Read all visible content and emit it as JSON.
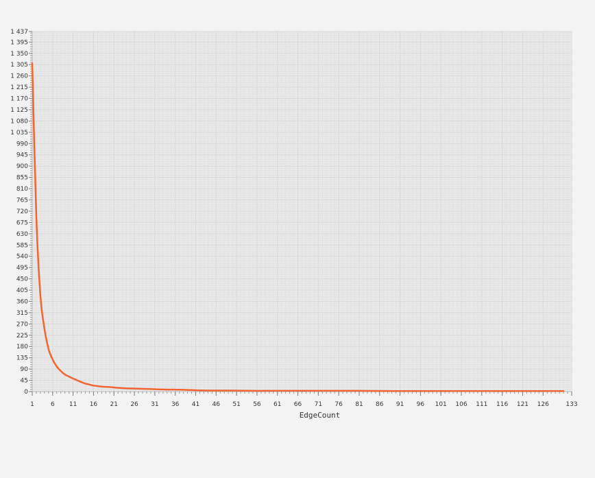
{
  "colors": {
    "page_background": "#f3f3f3",
    "plot_background": "#e9e9e9",
    "grid_major": "#dadada",
    "grid_minor": "#e2e2e2",
    "axis_text": "#333333",
    "series_line": "#f26430"
  },
  "chart_data": {
    "type": "line",
    "title": "",
    "xlabel": "EdgeCount",
    "ylabel": "",
    "grid": true,
    "legend": "none",
    "xlim": [
      1,
      133
    ],
    "ylim": [
      0,
      1437
    ],
    "x_ticks": [
      1,
      6,
      11,
      16,
      21,
      26,
      31,
      36,
      41,
      46,
      51,
      56,
      61,
      66,
      71,
      76,
      81,
      86,
      91,
      96,
      101,
      106,
      111,
      116,
      121,
      126,
      133
    ],
    "x_tick_labels": [
      "1",
      "6",
      "11",
      "16",
      "21",
      "26",
      "31",
      "36",
      "41",
      "46",
      "51",
      "56",
      "61",
      "66",
      "71",
      "76",
      "81",
      "86",
      "91",
      "96",
      "101",
      "106",
      "111",
      "116",
      "121",
      "126",
      "133"
    ],
    "y_ticks": [
      0,
      45,
      90,
      135,
      180,
      225,
      270,
      315,
      360,
      405,
      450,
      495,
      540,
      585,
      630,
      675,
      720,
      765,
      810,
      855,
      900,
      945,
      990,
      1035,
      1080,
      1125,
      1170,
      1215,
      1260,
      1305,
      1350,
      1395,
      1437
    ],
    "y_tick_labels": [
      "0",
      "45",
      "90",
      "135",
      "180",
      "225",
      "270",
      "315",
      "360",
      "405",
      "450",
      "495",
      "540",
      "585",
      "630",
      "675",
      "720",
      "765",
      "810",
      "855",
      "900",
      "945",
      "990",
      "1 035",
      "1 080",
      "1 125",
      "1 170",
      "1 215",
      "1 260",
      "1 305",
      "1 350",
      "1 395",
      "1 437"
    ],
    "series": [
      {
        "x": [
          1,
          2,
          3,
          4,
          5,
          6,
          7,
          8,
          9,
          10,
          11,
          12,
          13,
          14,
          15,
          16,
          18,
          20,
          22,
          24,
          26,
          28,
          30,
          32,
          34,
          36,
          38,
          40,
          42,
          45,
          50,
          55,
          60,
          70,
          80,
          90,
          100,
          110,
          120,
          126,
          131
        ],
        "y": [
          1310,
          700,
          385,
          250,
          170,
          128,
          100,
          82,
          68,
          60,
          52,
          45,
          38,
          32,
          28,
          24,
          20,
          18,
          15,
          13,
          12,
          11,
          10,
          9,
          8,
          8,
          7,
          6,
          5,
          4,
          4,
          3,
          3,
          3,
          3,
          2,
          2,
          2,
          2,
          2,
          2
        ]
      }
    ]
  }
}
